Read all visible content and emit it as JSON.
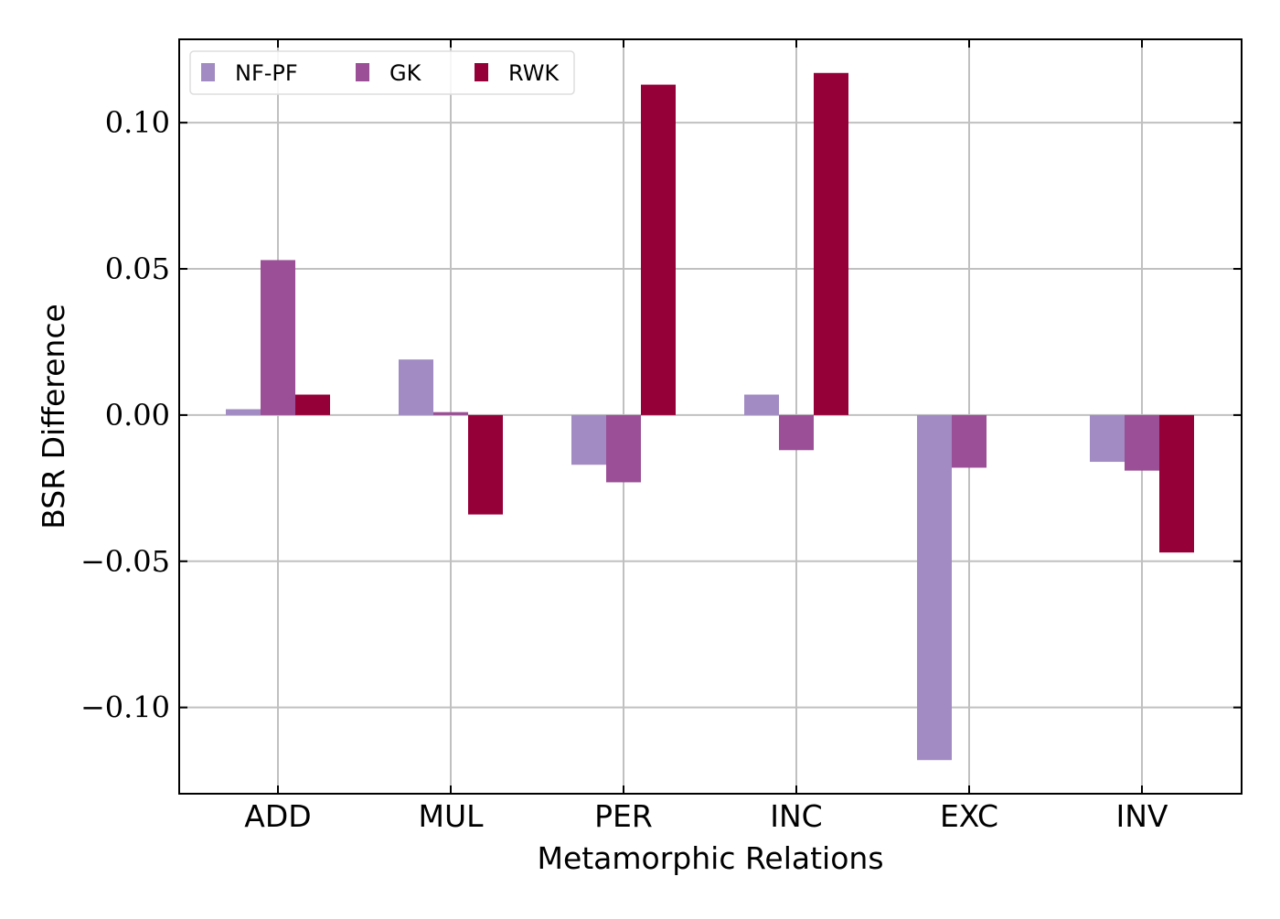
{
  "chart_data": {
    "type": "bar",
    "categories": [
      "ADD",
      "MUL",
      "PER",
      "INC",
      "EXC",
      "INV"
    ],
    "series": [
      {
        "name": "NF-PF",
        "color": "#a18bc2",
        "values": [
          0.002,
          0.019,
          -0.017,
          0.007,
          -0.118,
          -0.016
        ]
      },
      {
        "name": "GK",
        "color": "#9b4f96",
        "values": [
          0.053,
          0.001,
          -0.023,
          -0.012,
          -0.018,
          -0.019
        ]
      },
      {
        "name": "RWK",
        "color": "#960039",
        "values": [
          0.007,
          -0.034,
          0.113,
          0.117,
          0.0,
          -0.047
        ]
      }
    ],
    "yticks": [
      0.1,
      0.05,
      0.0,
      -0.05,
      -0.1
    ],
    "ytick_labels": [
      "0.10",
      "0.05",
      "0.00",
      "−0.05",
      "−0.10"
    ],
    "ylim": [
      -0.1295,
      0.1285
    ],
    "xlabel": "Metamorphic Relations",
    "ylabel": "BSR Difference",
    "title": "",
    "grid": true,
    "legend_position": "top-left",
    "legend_columns": 3,
    "grid_color": "#c0c0c0"
  }
}
